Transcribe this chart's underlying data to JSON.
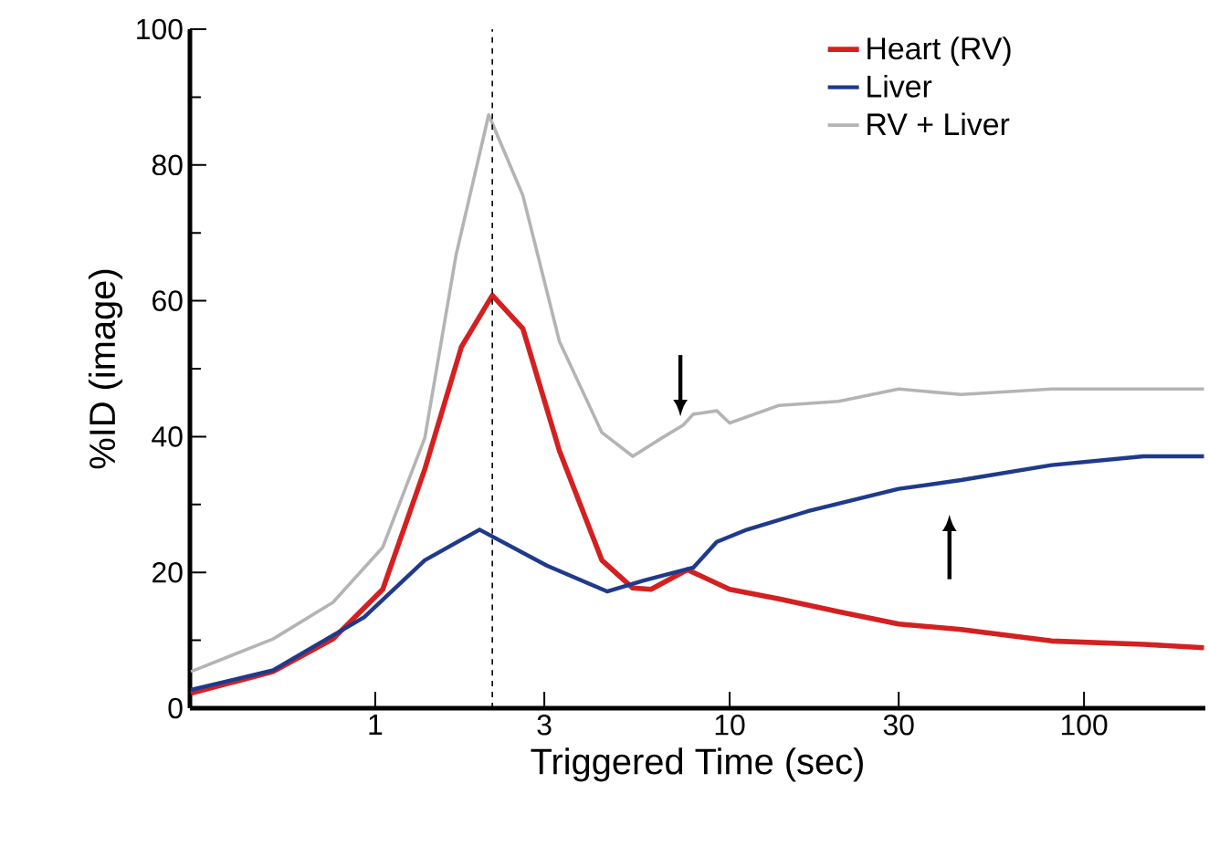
{
  "chart_data": {
    "type": "line",
    "xlabel": "Triggered Time (sec)",
    "ylabel": "%ID (image)",
    "log": "x",
    "xlim": [
      0.3,
      220
    ],
    "ylim": [
      0,
      100
    ],
    "xticks": [
      1,
      3,
      10,
      30,
      100
    ],
    "yticks": [
      0,
      20,
      40,
      60,
      80,
      100
    ],
    "grid": false,
    "legend": "top right",
    "line_style": "solid",
    "marker": "none",
    "ref_lines": [
      {
        "axis": "x",
        "value": 2.14,
        "color": "#000000",
        "line_style": "dashed"
      }
    ],
    "series": [
      {
        "name": "Heart (RV)",
        "color": "#d42020",
        "x": [
          0.302,
          0.515,
          0.76,
          1.05,
          1.38,
          1.75,
          2.14,
          2.61,
          3.31,
          4.36,
          5.33,
          6.0,
          7.6,
          10,
          13.8,
          20.3,
          30,
          45,
          81,
          147,
          218
        ],
        "values": [
          2.2,
          5.4,
          10.2,
          17.5,
          35.2,
          53.2,
          60.8,
          55.9,
          37.9,
          21.8,
          17.7,
          17.5,
          20.4,
          17.5,
          16.1,
          14.2,
          12.4,
          11.6,
          9.9,
          9.4,
          8.9
        ]
      },
      {
        "name": "Liver",
        "color": "#1f3a8c",
        "x": [
          0.302,
          0.515,
          0.93,
          1.38,
          1.97,
          3.05,
          4.51,
          5.72,
          7.9,
          9.2,
          11.2,
          16.6,
          30,
          45,
          81,
          147,
          218
        ],
        "values": [
          2.7,
          5.6,
          13.4,
          21.8,
          26.3,
          21,
          17.2,
          18.8,
          20.7,
          24.5,
          26.3,
          29,
          32.3,
          33.6,
          35.8,
          37.1,
          37.1
        ]
      },
      {
        "name": "RV + Liver",
        "color": "#b4b4b4",
        "x": [
          0.302,
          0.515,
          0.76,
          1.05,
          1.38,
          1.69,
          2.09,
          2.61,
          3.31,
          4.36,
          5.33,
          6.44,
          7.4,
          7.9,
          9.2,
          10,
          13.8,
          20.3,
          30,
          45,
          81,
          147,
          218
        ],
        "values": [
          5.4,
          10.2,
          15.6,
          23.7,
          39.8,
          66.7,
          87.4,
          75.5,
          54,
          40.6,
          37.1,
          39.8,
          41.7,
          43.3,
          43.8,
          42,
          44.6,
          45.2,
          47,
          46.2,
          47,
          47,
          47
        ]
      }
    ]
  }
}
